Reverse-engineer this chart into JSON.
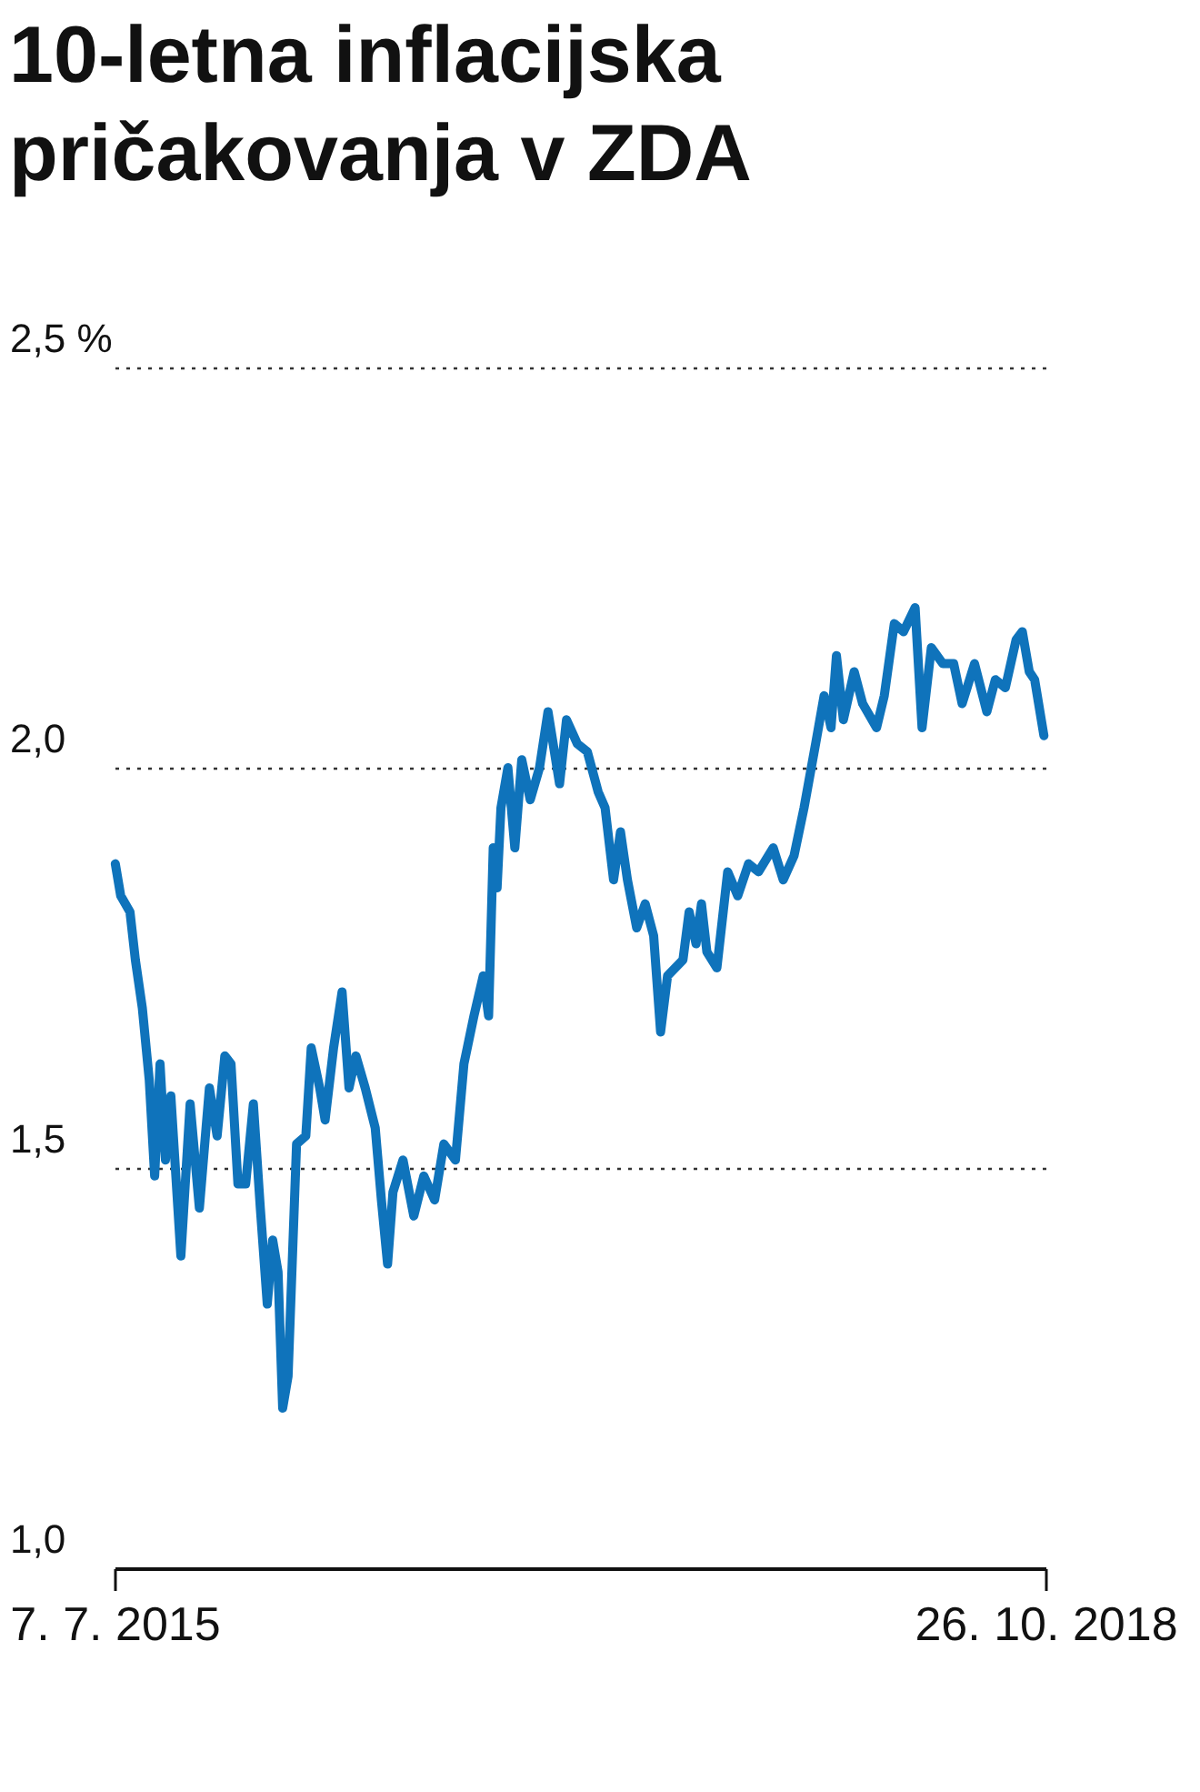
{
  "chart_data": {
    "type": "line",
    "title": [
      "10-letna inflacijska",
      "pričakovanja v ZDA"
    ],
    "xlim": [
      "2015-07-07",
      "2018-10-26"
    ],
    "xticks": [
      {
        "value": "2015-07-07",
        "label": "7. 7. 2015"
      },
      {
        "value": "2018-10-26",
        "label": "26. 10. 2018"
      }
    ],
    "ylim": [
      1.0,
      2.5
    ],
    "yticks": [
      {
        "value": 1.0,
        "label": "1,0"
      },
      {
        "value": 1.5,
        "label": "1,5"
      },
      {
        "value": 2.0,
        "label": "2,0"
      },
      {
        "value": 2.5,
        "label": "2,5 %"
      }
    ],
    "grid": "y",
    "line_style": "solid",
    "x": [
      "2015-07-08",
      "2015-07-15",
      "2015-07-27",
      "2015-08-03",
      "2015-08-12",
      "2015-08-21",
      "2015-08-28",
      "2015-09-04",
      "2015-09-11",
      "2015-09-18",
      "2015-10-01",
      "2015-10-13",
      "2015-10-25",
      "2015-11-07",
      "2015-11-17",
      "2015-11-27",
      "2015-12-05",
      "2015-12-14",
      "2015-12-24",
      "2016-01-03",
      "2016-01-12",
      "2016-01-21",
      "2016-01-28",
      "2016-02-04",
      "2016-02-10",
      "2016-02-17",
      "2016-02-28",
      "2016-03-11",
      "2016-03-18",
      "2016-03-29",
      "2016-04-05",
      "2016-04-16",
      "2016-04-27",
      "2016-05-06",
      "2016-05-15",
      "2016-05-27",
      "2016-06-09",
      "2016-06-17",
      "2016-06-25",
      "2016-07-02",
      "2016-07-15",
      "2016-07-29",
      "2016-08-11",
      "2016-08-25",
      "2016-09-06",
      "2016-09-21",
      "2016-10-02",
      "2016-10-15",
      "2016-10-27",
      "2016-11-03",
      "2016-11-09",
      "2016-11-14",
      "2016-11-19",
      "2016-11-28",
      "2016-12-07",
      "2016-12-16",
      "2016-12-27",
      "2017-01-08",
      "2017-01-19",
      "2017-02-03",
      "2017-02-12",
      "2017-02-26",
      "2017-03-11",
      "2017-03-25",
      "2017-04-03",
      "2017-04-14",
      "2017-04-23",
      "2017-05-02",
      "2017-05-14",
      "2017-05-25",
      "2017-06-05",
      "2017-06-14",
      "2017-06-23",
      "2017-07-03",
      "2017-07-13",
      "2017-07-21",
      "2017-07-30",
      "2017-08-06",
      "2017-08-13",
      "2017-08-26",
      "2017-09-09",
      "2017-09-22",
      "2017-10-06",
      "2017-10-19",
      "2017-11-07",
      "2017-11-20",
      "2017-12-04",
      "2017-12-17",
      "2018-01-01",
      "2018-01-12",
      "2018-01-21",
      "2018-01-28",
      "2018-02-06",
      "2018-02-20",
      "2018-03-03",
      "2018-03-21",
      "2018-03-31",
      "2018-04-13",
      "2018-04-25",
      "2018-05-10",
      "2018-05-19",
      "2018-05-31",
      "2018-06-15",
      "2018-06-29",
      "2018-07-10",
      "2018-07-26",
      "2018-08-11",
      "2018-08-22",
      "2018-09-04",
      "2018-09-18",
      "2018-09-26",
      "2018-10-05",
      "2018-10-12",
      "2018-10-24"
    ],
    "series": [
      {
        "color": "#0f73bb",
        "values": [
          1.88,
          1.84,
          1.82,
          1.76,
          1.7,
          1.61,
          1.49,
          1.63,
          1.51,
          1.59,
          1.39,
          1.58,
          1.45,
          1.6,
          1.54,
          1.64,
          1.63,
          1.48,
          1.48,
          1.58,
          1.45,
          1.33,
          1.41,
          1.37,
          1.2,
          1.24,
          1.53,
          1.54,
          1.65,
          1.6,
          1.56,
          1.65,
          1.72,
          1.6,
          1.64,
          1.6,
          1.55,
          1.46,
          1.38,
          1.47,
          1.51,
          1.44,
          1.49,
          1.46,
          1.53,
          1.51,
          1.63,
          1.69,
          1.74,
          1.69,
          1.9,
          1.85,
          1.95,
          2.0,
          1.9,
          2.01,
          1.96,
          2.0,
          2.07,
          1.98,
          2.06,
          2.03,
          2.02,
          1.97,
          1.95,
          1.86,
          1.92,
          1.86,
          1.8,
          1.83,
          1.79,
          1.67,
          1.74,
          1.75,
          1.76,
          1.82,
          1.78,
          1.83,
          1.77,
          1.75,
          1.87,
          1.84,
          1.88,
          1.87,
          1.9,
          1.86,
          1.89,
          1.95,
          2.03,
          2.09,
          2.05,
          2.14,
          2.06,
          2.12,
          2.08,
          2.05,
          2.09,
          2.18,
          2.17,
          2.2,
          2.05,
          2.15,
          2.13,
          2.13,
          2.08,
          2.13,
          2.07,
          2.11,
          2.1,
          2.16,
          2.17,
          2.12,
          2.11,
          2.04
        ]
      }
    ]
  }
}
